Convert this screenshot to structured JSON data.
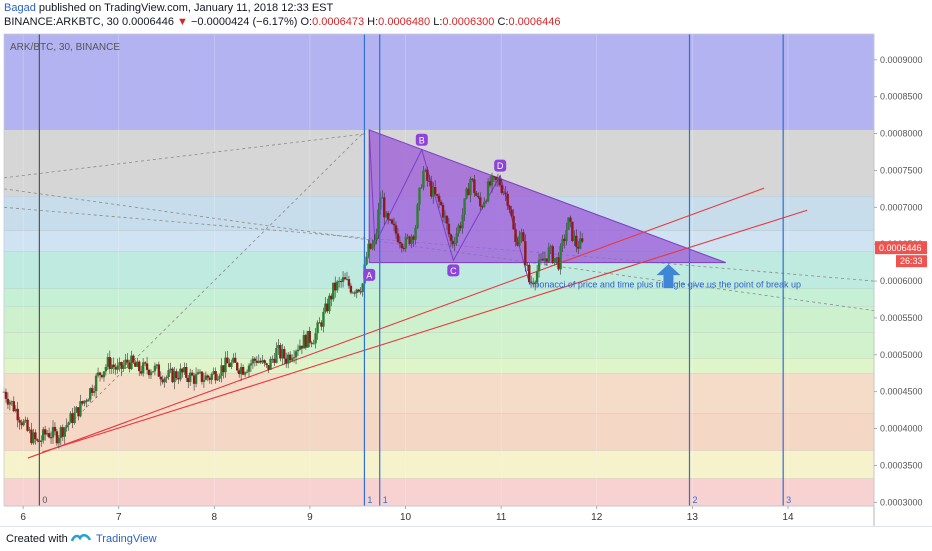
{
  "header": {
    "author": "Bagad",
    "published_text": " published on TradingView.com, January 11, 2018 12:33 EST",
    "symbol_line": "BINANCE:ARKBTC, 30",
    "last": "0.0006446",
    "change": "−0.0000424 (−6.17%)",
    "o_label": "O:",
    "o_val": "0.0006473",
    "h_label": "H:",
    "h_val": "0.0006480",
    "l_label": "L:",
    "l_val": "0.0006300",
    "c_label": "C:",
    "c_val": "0.0006446"
  },
  "chart_data": {
    "type": "candlestick",
    "title": "ARK/BTC, 30, BINANCE",
    "ylim": [
      0.000295,
      0.000935
    ],
    "xlim": [
      5.8,
      14.9
    ],
    "x_ticks": [
      {
        "v": 6,
        "label": "6"
      },
      {
        "v": 7,
        "label": "7"
      },
      {
        "v": 8,
        "label": "8"
      },
      {
        "v": 9,
        "label": "9"
      },
      {
        "v": 10,
        "label": "10"
      },
      {
        "v": 11,
        "label": "11"
      },
      {
        "v": 12,
        "label": "12"
      },
      {
        "v": 13,
        "label": "13"
      },
      {
        "v": 14,
        "label": "14"
      }
    ],
    "y_ticks": [
      "0.0003000",
      "0.0003500",
      "0.0004000",
      "0.0004500",
      "0.0005000",
      "0.0005500",
      "0.0006000",
      "0.0006500",
      "0.0007000",
      "0.0007500",
      "0.0008000",
      "0.0008500",
      "0.0009000"
    ],
    "last_price_label": "0.0006446",
    "last_price": 0.0006446,
    "countdown": "26:33",
    "fib_bands": [
      {
        "from": 0.000805,
        "to": 0.000935,
        "color": "#b3b3f2"
      },
      {
        "from": 0.000715,
        "to": 0.000805,
        "color": "#d6d6d6"
      },
      {
        "from": 0.000668,
        "to": 0.000715,
        "color": "#c7ddec"
      },
      {
        "from": 0.00064,
        "to": 0.000668,
        "color": "#cfe3f2"
      },
      {
        "from": 0.00059,
        "to": 0.00064,
        "color": "#bfeadf"
      },
      {
        "from": 0.000565,
        "to": 0.00059,
        "color": "#c5f0d6"
      },
      {
        "from": 0.00053,
        "to": 0.000565,
        "color": "#cdf0cd"
      },
      {
        "from": 0.000495,
        "to": 0.00053,
        "color": "#d2f2cd"
      },
      {
        "from": 0.000475,
        "to": 0.000495,
        "color": "#dff5c9"
      },
      {
        "from": 0.00042,
        "to": 0.000475,
        "color": "#f4dcc8"
      },
      {
        "from": 0.00037,
        "to": 0.00042,
        "color": "#f4d7c5"
      },
      {
        "from": 0.000332,
        "to": 0.00037,
        "color": "#f5f2cc"
      },
      {
        "from": 0.000295,
        "to": 0.000332,
        "color": "#f7d2d0"
      }
    ],
    "time_lines": [
      {
        "x": 6.17,
        "label": "0",
        "color": "#555555"
      },
      {
        "x": 9.57,
        "label": "1",
        "color": "#2f6fd6"
      },
      {
        "x": 9.73,
        "label": "1",
        "color": "#2f6fd6"
      },
      {
        "x": 12.97,
        "label": "2",
        "color": "#2f6fd6"
      },
      {
        "x": 13.95,
        "label": "3",
        "color": "#2f6fd6"
      }
    ],
    "triangle": [
      [
        9.62,
        0.000805
      ],
      [
        9.62,
        0.000625
      ],
      [
        13.35,
        0.000625
      ]
    ],
    "pattern_points": [
      {
        "label": "A",
        "x": 9.62,
        "y": 0.000622,
        "below": true
      },
      {
        "label": "B",
        "x": 10.17,
        "y": 0.000778,
        "below": false
      },
      {
        "label": "C",
        "x": 10.5,
        "y": 0.000628,
        "below": true
      },
      {
        "label": "D",
        "x": 10.99,
        "y": 0.000743,
        "below": false
      }
    ],
    "trend_lines": [
      {
        "x1": 6.05,
        "y1": 0.00036,
        "x2": 13.75,
        "y2": 0.000726,
        "color": "#e8383d"
      },
      {
        "x1": 6.2,
        "y1": 0.000368,
        "x2": 14.2,
        "y2": 0.000696,
        "color": "#e8383d"
      }
    ],
    "dashed_lines": [
      {
        "x1": 5.8,
        "y1": 0.00074,
        "x2": 9.6,
        "y2": 0.0008
      },
      {
        "x1": 6.4,
        "y1": 0.000395,
        "x2": 9.55,
        "y2": 0.0008
      },
      {
        "x1": 5.8,
        "y1": 0.0007,
        "x2": 14.9,
        "y2": 0.0006
      },
      {
        "x1": 5.8,
        "y1": 0.000725,
        "x2": 14.9,
        "y2": 0.00056
      }
    ],
    "annotation": "fibonacci of price and time plus triangle give us the point of break up",
    "arrow_at": {
      "x": 12.75,
      "y": 0.000608
    },
    "candles_path": [
      [
        5.8,
        0.00045
      ],
      [
        5.95,
        0.00042
      ],
      [
        6.05,
        0.000395
      ],
      [
        6.15,
        0.00038
      ],
      [
        6.25,
        0.000395
      ],
      [
        6.35,
        0.00039
      ],
      [
        6.45,
        0.000405
      ],
      [
        6.55,
        0.00042
      ],
      [
        6.65,
        0.00044
      ],
      [
        6.8,
        0.000475
      ],
      [
        6.9,
        0.00049
      ],
      [
        7.0,
        0.000478
      ],
      [
        7.1,
        0.000492
      ],
      [
        7.2,
        0.00048
      ],
      [
        7.35,
        0.000482
      ],
      [
        7.5,
        0.00047
      ],
      [
        7.65,
        0.000475
      ],
      [
        7.8,
        0.000468
      ],
      [
        7.95,
        0.00047
      ],
      [
        8.05,
        0.00048
      ],
      [
        8.15,
        0.000488
      ],
      [
        8.3,
        0.000482
      ],
      [
        8.45,
        0.000495
      ],
      [
        8.55,
        0.00048
      ],
      [
        8.65,
        0.000505
      ],
      [
        8.75,
        0.000495
      ],
      [
        8.85,
        0.00051
      ],
      [
        8.95,
        0.00052
      ],
      [
        9.05,
        0.000525
      ],
      [
        9.15,
        0.000555
      ],
      [
        9.25,
        0.00059
      ],
      [
        9.35,
        0.0006
      ],
      [
        9.45,
        0.00059
      ],
      [
        9.55,
        0.000595
      ],
      [
        9.6,
        0.00064
      ],
      [
        9.68,
        0.00065
      ],
      [
        9.74,
        0.00072
      ],
      [
        9.8,
        0.00068
      ],
      [
        9.9,
        0.000665
      ],
      [
        10.0,
        0.00065
      ],
      [
        10.1,
        0.00067
      ],
      [
        10.18,
        0.00075
      ],
      [
        10.28,
        0.00072
      ],
      [
        10.38,
        0.0007
      ],
      [
        10.48,
        0.00065
      ],
      [
        10.58,
        0.00068
      ],
      [
        10.68,
        0.00074
      ],
      [
        10.78,
        0.0007
      ],
      [
        10.88,
        0.00073
      ],
      [
        10.98,
        0.000735
      ],
      [
        11.08,
        0.00071
      ],
      [
        11.15,
        0.00065
      ],
      [
        11.2,
        0.00067
      ],
      [
        11.3,
        0.000595
      ],
      [
        11.4,
        0.00062
      ],
      [
        11.5,
        0.00064
      ],
      [
        11.6,
        0.000625
      ],
      [
        11.7,
        0.00068
      ],
      [
        11.78,
        0.00065
      ],
      [
        11.85,
        0.000648
      ]
    ]
  },
  "footer": {
    "created": "Created with",
    "brand": "TradingView"
  }
}
